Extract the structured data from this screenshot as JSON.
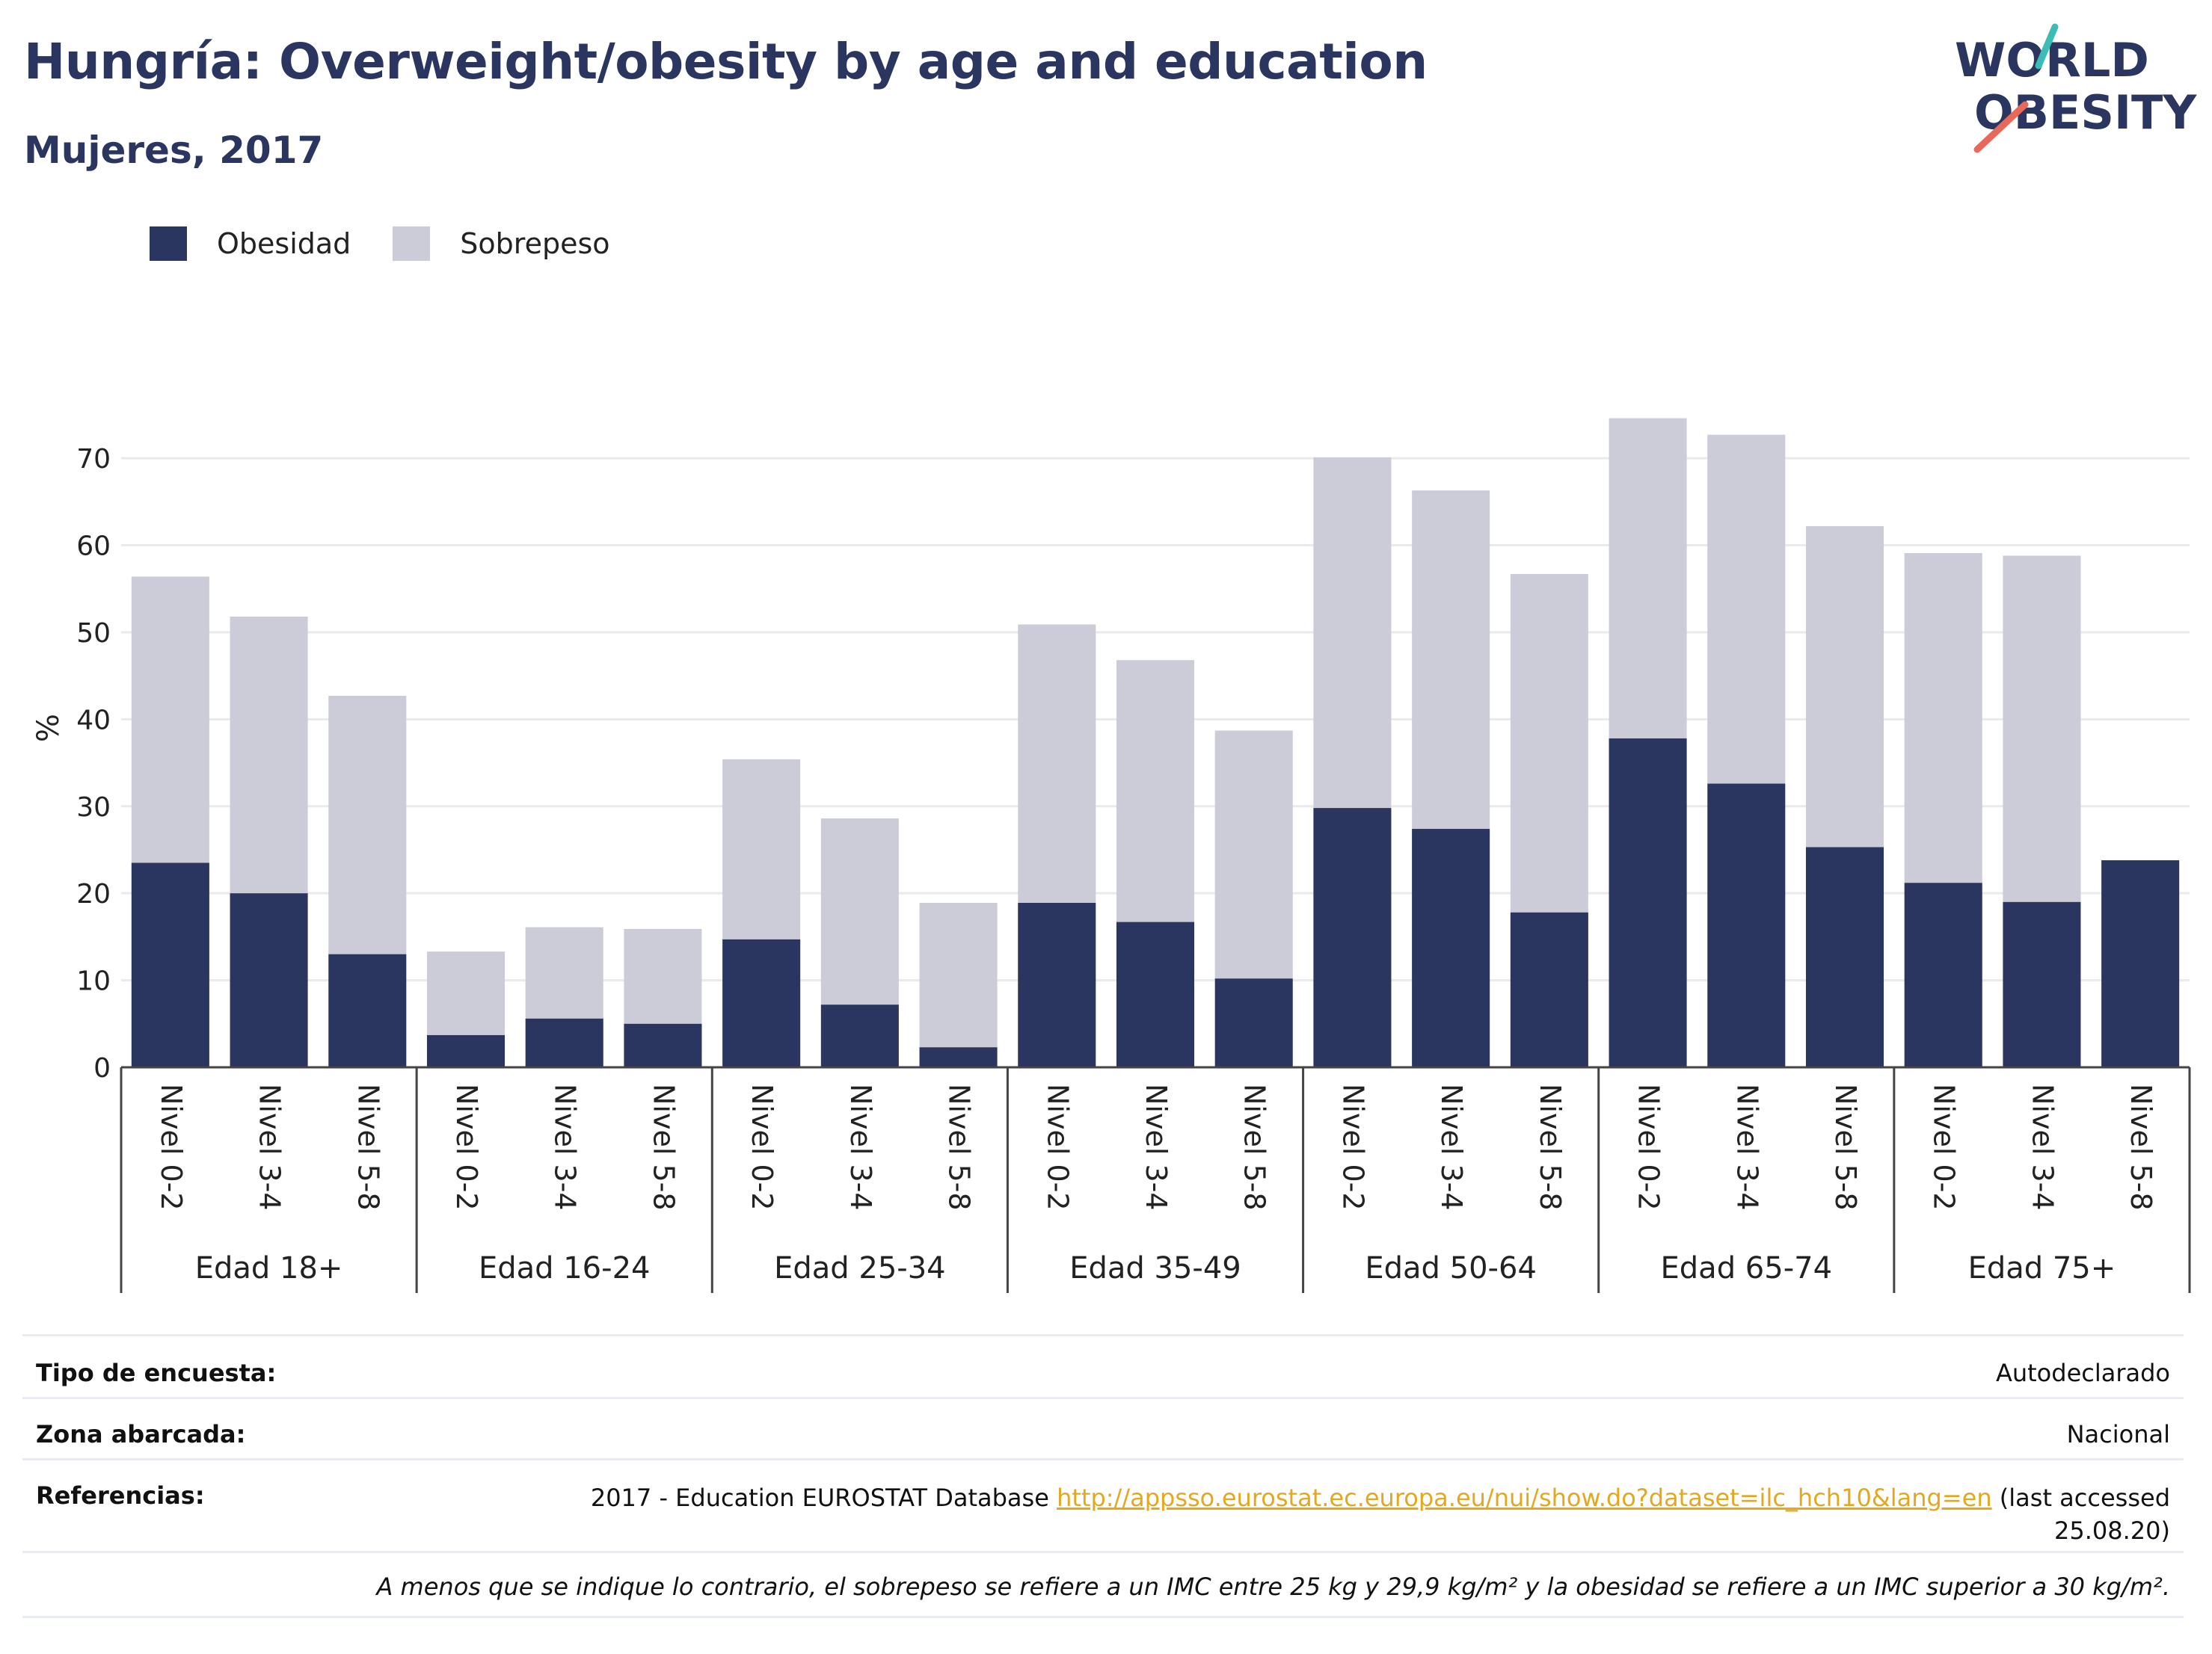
{
  "header": {
    "title": "Hungría: Overweight/obesity by age and education",
    "subtitle": "Mujeres, 2017",
    "logo_text_1": "WORLD",
    "logo_text_2": "OBESITY"
  },
  "legend": {
    "obesity_label": "Obesidad",
    "overweight_label": "Sobrepeso"
  },
  "colors": {
    "obesity": "#2a3560",
    "overweight": "#cbccd8",
    "grid": "#e9e9ee",
    "axis": "#444444",
    "link": "#e3a81e",
    "logo_teal": "#3cbcb4",
    "logo_red": "#e8685a"
  },
  "chart_data": {
    "type": "bar",
    "stacked": true,
    "ylabel": "%",
    "ylim": [
      0,
      78
    ],
    "yticks": [
      0,
      10,
      20,
      30,
      40,
      50,
      60,
      70
    ],
    "grid": true,
    "legend_position": "top-left",
    "groups": [
      "Edad 18+",
      "Edad 16-24",
      "Edad 25-34",
      "Edad 35-49",
      "Edad 50-64",
      "Edad 65-74",
      "Edad 75+"
    ],
    "levels": [
      "Nivel 0-2",
      "Nivel 3-4",
      "Nivel 5-8"
    ],
    "series": [
      {
        "name": "Obesidad",
        "values": [
          23.5,
          20.0,
          13.0,
          3.7,
          5.6,
          5.0,
          14.7,
          7.2,
          2.3,
          18.9,
          16.7,
          10.2,
          29.8,
          27.4,
          17.8,
          37.8,
          32.6,
          25.3,
          21.2,
          19.0,
          23.8
        ]
      },
      {
        "name": "Sobrepeso",
        "values": [
          32.9,
          31.8,
          29.7,
          9.6,
          10.5,
          10.9,
          20.7,
          21.4,
          16.6,
          32.0,
          30.1,
          28.5,
          40.3,
          38.9,
          38.9,
          36.8,
          40.1,
          36.9,
          37.9,
          39.8,
          0
        ]
      }
    ]
  },
  "info": {
    "survey_type_label": "Tipo de encuesta:",
    "survey_type_value": "Autodeclarado",
    "coverage_label": "Zona abarcada:",
    "coverage_value": "Nacional",
    "references_label": "Referencias:",
    "references_prefix": "2017 - Education EUROSTAT Database",
    "references_link": "http://appsso.eurostat.ec.europa.eu/nui/show.do?dataset=ilc_hch10&lang=en",
    "references_suffix_1": "(last accessed",
    "references_suffix_2": "25.08.20)",
    "note": "A menos que se indique lo contrario, el sobrepeso se refiere a un IMC entre 25 kg y 29,9 kg/m² y la obesidad se refiere a un IMC superior a 30 kg/m²."
  }
}
